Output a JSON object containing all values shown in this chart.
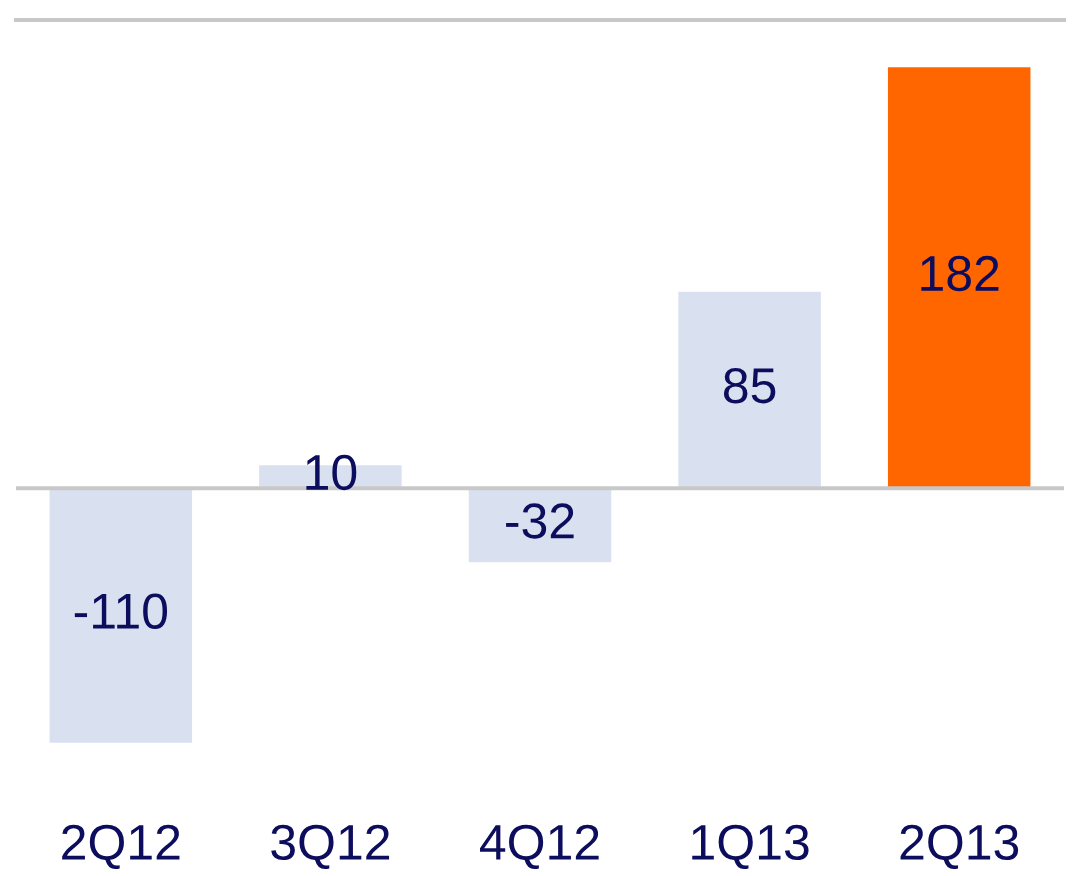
{
  "chart_data": {
    "type": "bar",
    "categories": [
      "2Q12",
      "3Q12",
      "4Q12",
      "1Q13",
      "2Q13"
    ],
    "values": [
      -110,
      10,
      -32,
      85,
      182
    ],
    "colors": [
      "#d9e1f0",
      "#d9e1f0",
      "#d9e1f0",
      "#d9e1f0",
      "#ff6600"
    ],
    "data_labels": true,
    "grid": false,
    "legend": false
  }
}
